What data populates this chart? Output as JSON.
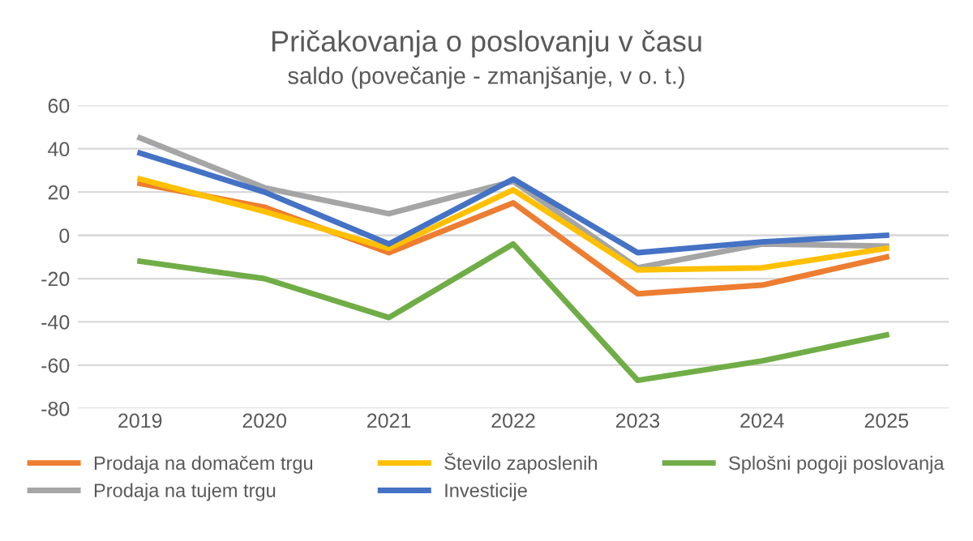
{
  "chart_data": {
    "type": "line",
    "title": "Pričakovanja o poslovanju v času",
    "subtitle": "saldo (povečanje - zmanjšanje, v o. t.)",
    "categories": [
      "2019",
      "2020",
      "2021",
      "2022",
      "2023",
      "2024",
      "2025"
    ],
    "series": [
      {
        "name": "Prodaja na domačem trgu",
        "color": "#ed7d31",
        "values": [
          24,
          13,
          -8,
          15,
          -27,
          -23,
          -10
        ]
      },
      {
        "name": "Prodaja na tujem trgu",
        "color": "#a5a5a5",
        "values": [
          45,
          22,
          10,
          25,
          -15,
          -4,
          -5
        ]
      },
      {
        "name": "Število zaposlenih",
        "color": "#ffc000",
        "values": [
          26,
          11,
          -6,
          21,
          -16,
          -15,
          -6
        ]
      },
      {
        "name": "Investicije",
        "color": "#4472c4",
        "values": [
          38,
          20,
          -4,
          26,
          -8,
          -3,
          0
        ]
      },
      {
        "name": "Splošni pogoji poslovanja",
        "color": "#70ad47",
        "values": [
          -12,
          -20,
          -38,
          -4,
          -67,
          -58,
          -46
        ]
      }
    ],
    "ylim": [
      -80,
      60
    ],
    "yticks": [
      -80,
      -60,
      -40,
      -20,
      0,
      20,
      40,
      60
    ],
    "grid": "y",
    "legend": "bottom",
    "marker": "none",
    "line_style": "solid"
  }
}
